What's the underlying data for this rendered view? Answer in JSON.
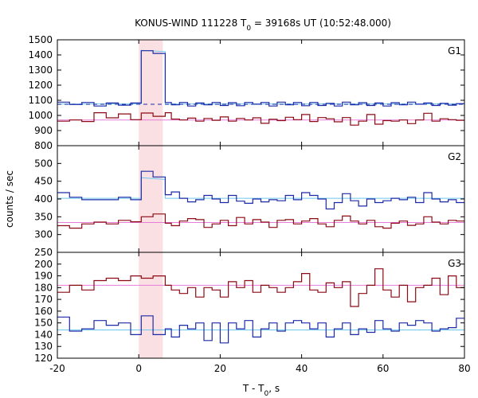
{
  "chart_data": {
    "type": "line",
    "title": "KONUS-WIND 111228 T",
    "title_sub": "0",
    "title_rest": " = 39168s UT (10:52:48.000)",
    "xlabel": "T - T",
    "xlabel_sub": "0",
    "xlabel_rest": ", s",
    "ylabel": "counts / sec",
    "xlim": [
      -20,
      80
    ],
    "x_ticks": [
      -20,
      0,
      20,
      40,
      60,
      80
    ],
    "x_tick_labels": [
      "-20",
      "0",
      "20",
      "40",
      "60",
      "80"
    ],
    "shaded_interval": [
      0,
      5.9
    ],
    "colors": {
      "dark_red": "#8b0a14",
      "blue": "#1c2aa8",
      "light_blue": "#6ec8ee",
      "pink": "#e67ed9",
      "shade": "#f7c6cc"
    },
    "panels": [
      {
        "label": "G1",
        "ylim": [
          800,
          1500
        ],
        "y_ticks": [
          800,
          900,
          1000,
          1100,
          1200,
          1300,
          1400,
          1500
        ],
        "y_tick_labels": [
          "800",
          "900",
          "1000",
          "1100",
          "1200",
          "1300",
          "1400",
          "1500"
        ],
        "bin_edges": [
          -20,
          -17,
          -14,
          -11,
          -8,
          -5,
          -2,
          0.6,
          3.5,
          6.5,
          8,
          10,
          12,
          14,
          16,
          18,
          20,
          22,
          24,
          26,
          28,
          30,
          32,
          34,
          36,
          38,
          40,
          42,
          44,
          46,
          48,
          50,
          52,
          54,
          56,
          58,
          60,
          62,
          64,
          66,
          68,
          70,
          72,
          74,
          76,
          78,
          80
        ],
        "series": [
          {
            "color_key": "blue",
            "values": [
              1088,
              1072,
              1086,
              1062,
              1082,
              1068,
              1082,
              1428,
              1410,
              1086,
              1070,
              1086,
              1062,
              1082,
              1070,
              1086,
              1066,
              1084,
              1064,
              1086,
              1074,
              1086,
              1062,
              1088,
              1070,
              1086,
              1064,
              1086,
              1066,
              1080,
              1062,
              1088,
              1070,
              1084,
              1066,
              1082,
              1062,
              1084,
              1070,
              1088,
              1074,
              1082,
              1066,
              1080,
              1068,
              1078
            ]
          },
          {
            "color_key": "dark_red",
            "values": [
              962,
              970,
              960,
              1018,
              984,
              1010,
              972,
              1016,
              994,
              1018,
              976,
              970,
              982,
              962,
              980,
              968,
              990,
              962,
              980,
              970,
              984,
              948,
              974,
              966,
              988,
              972,
              1006,
              960,
              986,
              978,
              958,
              986,
              936,
              962,
              1006,
              942,
              966,
              962,
              970,
              946,
              970,
              1014,
              962,
              978,
              972,
              968
            ]
          }
        ],
        "bg_series": [
          {
            "color_key": "light_blue",
            "x": [
              -20,
              0.6,
              0.6,
              6.5,
              6.5,
              80
            ],
            "y": [
              1076,
              1076,
              1430,
              1422,
              1076,
              1076
            ]
          },
          {
            "color_key": "pink",
            "x": [
              -20,
              80
            ],
            "y": [
              970,
              970
            ]
          }
        ],
        "dashed_line": {
          "color_key": "blue",
          "x": [
            -20,
            80
          ],
          "y": [
            1074,
            1074
          ]
        }
      },
      {
        "label": "G2",
        "ylim": [
          250,
          550
        ],
        "y_ticks": [
          250,
          300,
          350,
          400,
          450,
          500
        ],
        "y_tick_labels": [
          "250",
          "300",
          "350",
          "400",
          "450",
          "500"
        ],
        "bin_edges": [
          -20,
          -17,
          -14,
          -11,
          -8,
          -5,
          -2,
          0.6,
          3.5,
          6.5,
          8,
          10,
          12,
          14,
          16,
          18,
          20,
          22,
          24,
          26,
          28,
          30,
          32,
          34,
          36,
          38,
          40,
          42,
          44,
          46,
          48,
          50,
          52,
          54,
          56,
          58,
          60,
          62,
          64,
          66,
          68,
          70,
          72,
          74,
          76,
          78,
          80
        ],
        "series": [
          {
            "color_key": "blue",
            "values": [
              418,
              405,
              398,
              398,
              398,
              405,
              398,
              478,
              462,
              412,
              420,
              402,
              392,
              398,
              410,
              400,
              390,
              410,
              394,
              388,
              400,
              392,
              398,
              395,
              410,
              398,
              418,
              410,
              400,
              372,
              390,
              415,
              395,
              380,
              400,
              390,
              395,
              402,
              398,
              405,
              390,
              418,
              400,
              392,
              398,
              390
            ]
          },
          {
            "color_key": "dark_red",
            "values": [
              325,
              318,
              330,
              335,
              330,
              340,
              336,
              350,
              358,
              332,
              325,
              338,
              345,
              342,
              320,
              330,
              340,
              325,
              348,
              330,
              342,
              335,
              320,
              340,
              342,
              330,
              338,
              345,
              330,
              322,
              340,
              352,
              338,
              330,
              340,
              322,
              318,
              332,
              338,
              326,
              330,
              350,
              335,
              330,
              340,
              338
            ]
          }
        ],
        "bg_series": [
          {
            "color_key": "light_blue",
            "x": [
              -20,
              0.6,
              0.6,
              6.5,
              6.5,
              80
            ],
            "y": [
              402,
              402,
              460,
              455,
              402,
              402
            ]
          },
          {
            "color_key": "pink",
            "x": [
              -20,
              80
            ],
            "y": [
              334,
              334
            ]
          }
        ]
      },
      {
        "label": "G3",
        "ylim": [
          120,
          210
        ],
        "y_ticks": [
          120,
          130,
          140,
          150,
          160,
          170,
          180,
          190,
          200
        ],
        "y_tick_labels": [
          "120",
          "130",
          "140",
          "150",
          "160",
          "170",
          "180",
          "190",
          "200"
        ],
        "bin_edges": [
          -20,
          -17,
          -14,
          -11,
          -8,
          -5,
          -2,
          0.6,
          3.5,
          6.5,
          8,
          10,
          12,
          14,
          16,
          18,
          20,
          22,
          24,
          26,
          28,
          30,
          32,
          34,
          36,
          38,
          40,
          42,
          44,
          46,
          48,
          50,
          52,
          54,
          56,
          58,
          60,
          62,
          64,
          66,
          68,
          70,
          72,
          74,
          76,
          78,
          80
        ],
        "series": [
          {
            "color_key": "blue",
            "values": [
              155,
              143,
              145,
              152,
              148,
              150,
              140,
              156,
              140,
              145,
              138,
              148,
              145,
              150,
              135,
              150,
              133,
              150,
              145,
              152,
              138,
              145,
              150,
              143,
              150,
              152,
              150,
              145,
              150,
              138,
              145,
              150,
              140,
              145,
              142,
              152,
              145,
              143,
              150,
              148,
              152,
              150,
              143,
              145,
              146,
              154
            ]
          },
          {
            "color_key": "dark_red",
            "values": [
              176,
              182,
              178,
              186,
              188,
              186,
              190,
              188,
              190,
              182,
              178,
              175,
              180,
              172,
              180,
              178,
              172,
              185,
              180,
              186,
              176,
              182,
              180,
              176,
              180,
              185,
              192,
              178,
              176,
              184,
              180,
              185,
              164,
              175,
              182,
              196,
              178,
              172,
              182,
              168,
              180,
              182,
              188,
              174,
              190,
              180
            ]
          }
        ],
        "bg_series": [
          {
            "color_key": "light_blue",
            "x": [
              -20,
              80
            ],
            "y": [
              144,
              144
            ]
          },
          {
            "color_key": "pink",
            "x": [
              -20,
              80
            ],
            "y": [
              182,
              182
            ]
          }
        ]
      }
    ]
  }
}
